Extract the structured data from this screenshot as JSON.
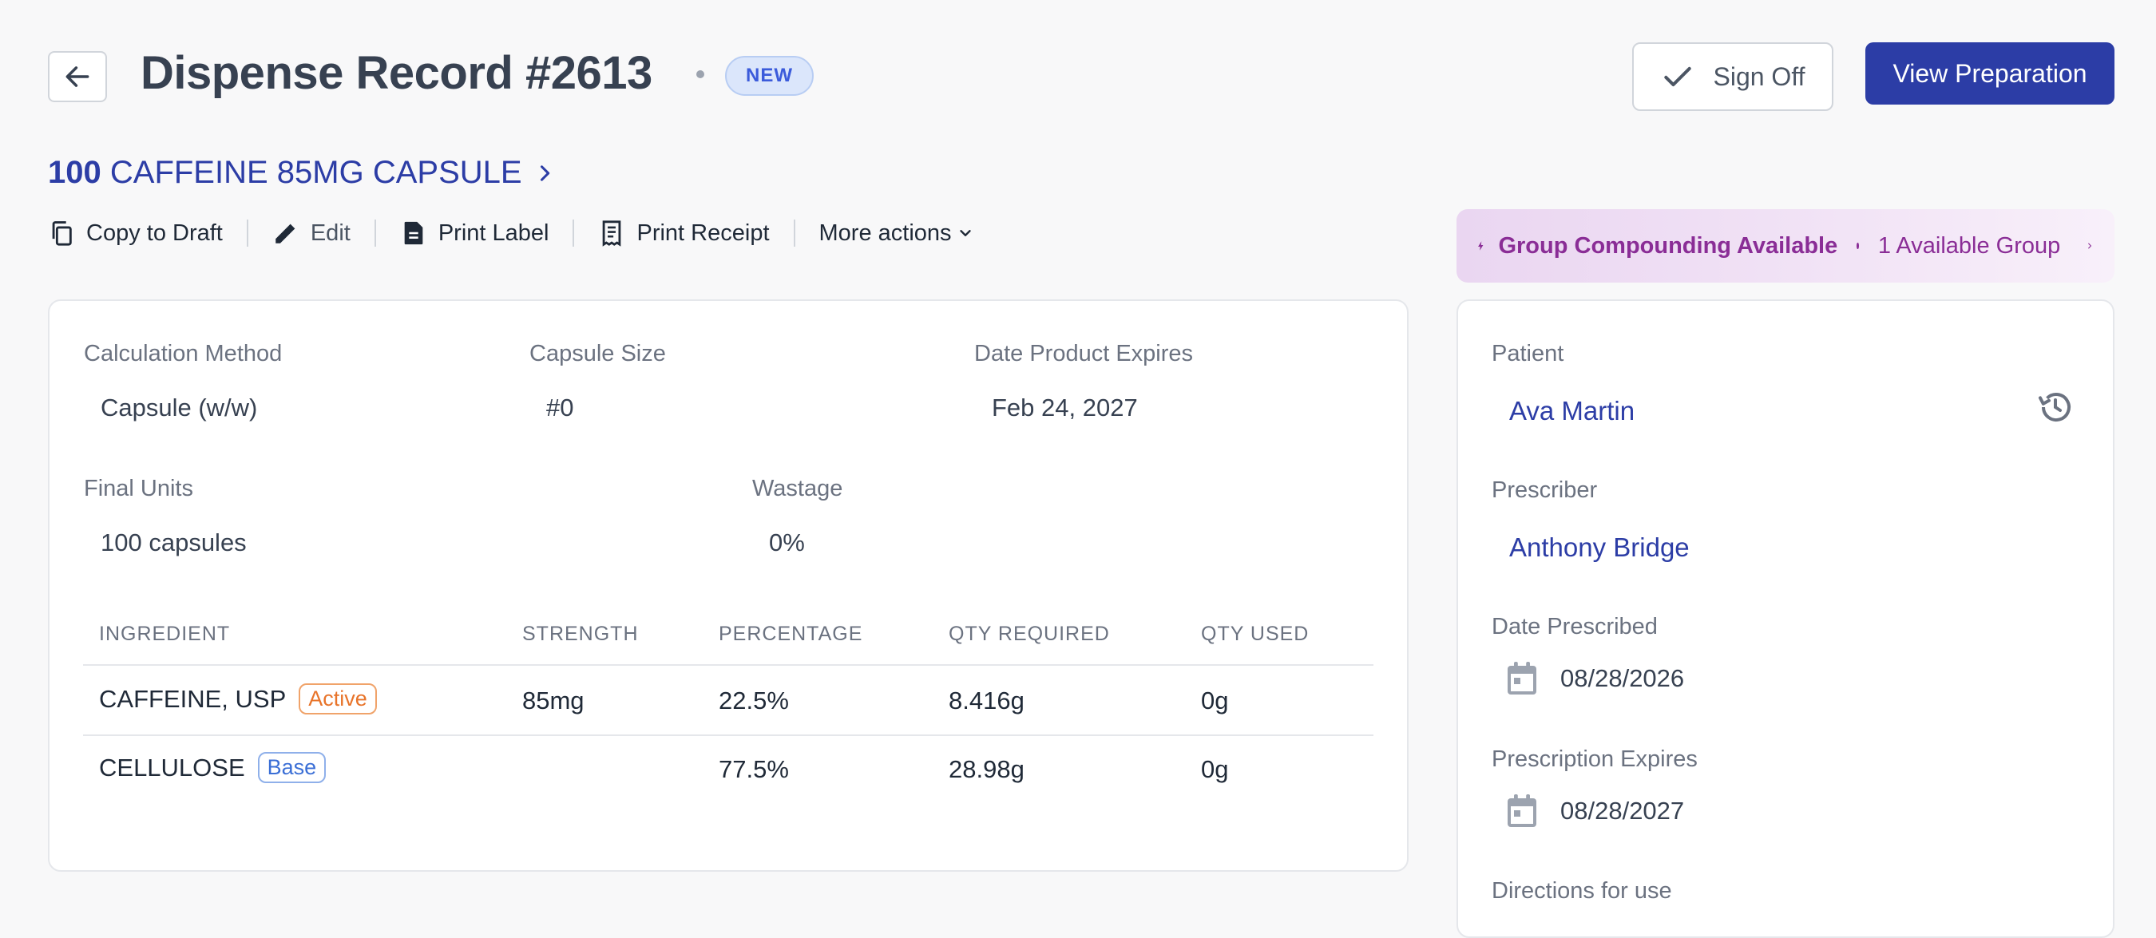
{
  "header": {
    "title": "Dispense Record #2613",
    "status_badge": "NEW",
    "sign_off_label": "Sign Off",
    "view_preparation_label": "View Preparation"
  },
  "product": {
    "quantity": "100",
    "name": "CAFFEINE 85MG CAPSULE"
  },
  "actions": [
    {
      "label": "Copy to Draft",
      "icon": "copy-icon"
    },
    {
      "label": "Edit",
      "icon": "pencil-icon"
    },
    {
      "label": "Print Label",
      "icon": "label-icon"
    },
    {
      "label": "Print Receipt",
      "icon": "receipt-icon"
    },
    {
      "label": "More actions",
      "icon": "chevron-down-icon"
    }
  ],
  "group_banner": {
    "title": "Group Compounding Available",
    "count_text": "1 Available Group"
  },
  "details": {
    "calculation_method": {
      "label": "Calculation Method",
      "value": "Capsule (w/w)"
    },
    "capsule_size": {
      "label": "Capsule Size",
      "value": "#0"
    },
    "date_product_expires": {
      "label": "Date Product Expires",
      "value": "Feb 24, 2027"
    },
    "final_units": {
      "label": "Final Units",
      "value": "100 capsules"
    },
    "wastage": {
      "label": "Wastage",
      "value": "0%"
    }
  },
  "ingredients": {
    "columns": [
      "INGREDIENT",
      "STRENGTH",
      "PERCENTAGE",
      "QTY REQUIRED",
      "QTY USED"
    ],
    "rows": [
      {
        "name": "CAFFEINE, USP",
        "tag": "Active",
        "strength": "85mg",
        "percentage": "22.5%",
        "qty_required": "8.416g",
        "qty_used": "0g"
      },
      {
        "name": "CELLULOSE",
        "tag": "Base",
        "strength": "",
        "percentage": "77.5%",
        "qty_required": "28.98g",
        "qty_used": "0g"
      }
    ]
  },
  "side": {
    "patient": {
      "label": "Patient",
      "value": "Ava Martin"
    },
    "prescriber": {
      "label": "Prescriber",
      "value": "Anthony Bridge"
    },
    "date_prescribed": {
      "label": "Date Prescribed",
      "value": "08/28/2026"
    },
    "prescription_expires": {
      "label": "Prescription Expires",
      "value": "08/28/2027"
    },
    "directions_label": "Directions for use"
  },
  "colors": {
    "primary": "#2c3da6",
    "group_purple": "#8a2d96",
    "active_tag": "#e8742a",
    "base_tag": "#3b6fd6"
  }
}
